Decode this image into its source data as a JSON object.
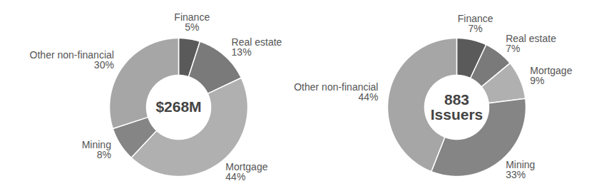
{
  "chart_data": [
    {
      "type": "donut",
      "annotations": [
        "$268M"
      ],
      "categories": [
        "Finance",
        "Real estate",
        "Mortgage",
        "Mining",
        "Other non-financial"
      ],
      "values": [
        5,
        13,
        44,
        8,
        30
      ],
      "value_labels": [
        "5%",
        "13%",
        "44%",
        "8%",
        "30%"
      ],
      "colors": [
        "#5a5a5a",
        "#7a7a7a",
        "#b0b0b0",
        "#858585",
        "#a6a6a6"
      ],
      "data_labels": true
    },
    {
      "type": "donut",
      "annotations": [
        "883",
        "Issuers"
      ],
      "categories": [
        "Finance",
        "Real estate",
        "Mortgage",
        "Mining",
        "Other non-financial"
      ],
      "values": [
        7,
        7,
        9,
        33,
        44
      ],
      "value_labels": [
        "7%",
        "7%",
        "9%",
        "33%",
        "44%"
      ],
      "colors": [
        "#5a5a5a",
        "#7a7a7a",
        "#b0b0b0",
        "#858585",
        "#a6a6a6"
      ],
      "data_labels": true
    }
  ]
}
